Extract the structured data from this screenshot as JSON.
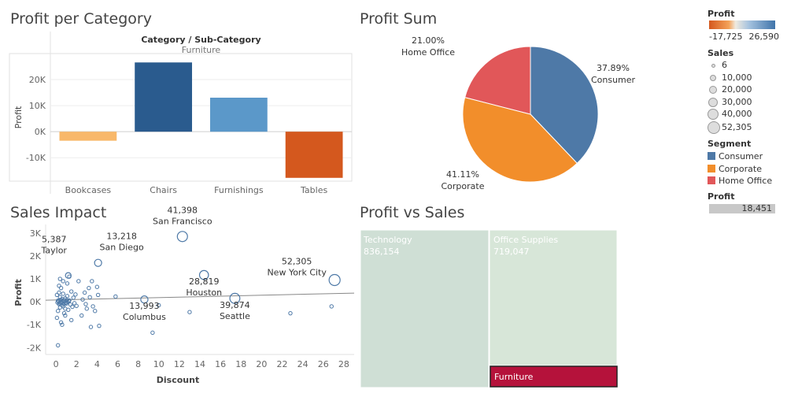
{
  "panels": {
    "profit_per_category": {
      "title": "Profit per Category",
      "header": "Category / Sub-Category",
      "subheader": "Furniture",
      "chart_data": {
        "type": "bar",
        "categories": [
          "Bookcases",
          "Chairs",
          "Furnishings",
          "Tables"
        ],
        "values": [
          -3473,
          26590,
          13059,
          -17725
        ],
        "colors": [
          "#f8b86a",
          "#2a5b8e",
          "#5b98c9",
          "#d4581e"
        ],
        "ylabel": "Profit",
        "yticks": [
          -10000,
          0,
          10000,
          20000
        ],
        "ytick_labels": [
          "-10K",
          "0K",
          "10K",
          "20K"
        ],
        "ylim": [
          -19000,
          30000
        ],
        "grid": true
      }
    },
    "profit_sum": {
      "title": "Profit Sum",
      "chart_data": {
        "type": "pie",
        "slices": [
          {
            "label": "Consumer",
            "pct": 37.89,
            "pct_label": "37.89%",
            "color": "#4e79a7"
          },
          {
            "label": "Corporate",
            "pct": 41.11,
            "pct_label": "41.11%",
            "color": "#f28e2b"
          },
          {
            "label": "Home Office",
            "pct": 21.0,
            "pct_label": "21.00%",
            "color": "#e15759"
          }
        ]
      }
    },
    "sales_impact": {
      "title": "Sales Impact",
      "chart_data": {
        "type": "scatter",
        "xlabel": "Discount",
        "ylabel": "Profit",
        "xlim": [
          -1,
          29
        ],
        "ylim": [
          -2300,
          3100
        ],
        "xticks": [
          0,
          2,
          4,
          6,
          8,
          10,
          12,
          14,
          16,
          18,
          20,
          22,
          24,
          26,
          28
        ],
        "yticks": [
          -2000,
          -1000,
          0,
          1000,
          2000,
          3000
        ],
        "ytick_labels": [
          "-2K",
          "-1K",
          "0K",
          "1K",
          "2K",
          "3K"
        ],
        "trend": {
          "x": [
            -1,
            29
          ],
          "y": [
            70,
            380
          ]
        },
        "labeled_points": [
          {
            "name": "Taylor",
            "value": "5,387",
            "x": 1.2,
            "y": 1150,
            "s": 5387
          },
          {
            "name": "San Diego",
            "value": "13,218",
            "x": 4.1,
            "y": 1700,
            "s": 13218
          },
          {
            "name": "San Francisco",
            "value": "41,398",
            "x": 12.3,
            "y": 2850,
            "s": 41398
          },
          {
            "name": "Houston",
            "value": "28,819",
            "x": 14.4,
            "y": 1170,
            "s": 28819
          },
          {
            "name": "New York City",
            "value": "52,305",
            "x": 27.1,
            "y": 950,
            "s": 52305
          },
          {
            "name": "Columbus",
            "value": "13,993",
            "x": 8.6,
            "y": 100,
            "s": 13993
          },
          {
            "name": "Seattle",
            "value": "39,874",
            "x": 17.4,
            "y": 150,
            "s": 39874
          }
        ],
        "other_points": [
          [
            0.2,
            50
          ],
          [
            0.3,
            -100
          ],
          [
            0.4,
            200
          ],
          [
            0.5,
            -50
          ],
          [
            0.6,
            120
          ],
          [
            0.7,
            -200
          ],
          [
            0.8,
            80
          ],
          [
            0.9,
            -300
          ],
          [
            0.1,
            300
          ],
          [
            0.2,
            -400
          ],
          [
            0.3,
            400
          ],
          [
            0.4,
            -250
          ],
          [
            0.5,
            600
          ],
          [
            0.6,
            -150
          ],
          [
            0.7,
            350
          ],
          [
            0.8,
            -500
          ],
          [
            0.9,
            150
          ],
          [
            1.0,
            -80
          ],
          [
            1.1,
            250
          ],
          [
            1.2,
            -350
          ],
          [
            1.3,
            60
          ],
          [
            1.4,
            -120
          ],
          [
            1.5,
            450
          ],
          [
            1.6,
            -220
          ],
          [
            1.7,
            180
          ],
          [
            1.8,
            -60
          ],
          [
            1.9,
            320
          ],
          [
            2.0,
            -180
          ],
          [
            0.15,
            -30
          ],
          [
            0.25,
            20
          ],
          [
            0.35,
            -60
          ],
          [
            0.45,
            90
          ],
          [
            0.55,
            -20
          ],
          [
            0.65,
            40
          ],
          [
            0.75,
            -90
          ],
          [
            0.85,
            10
          ],
          [
            0.95,
            -40
          ],
          [
            1.05,
            70
          ],
          [
            1.15,
            -10
          ],
          [
            1.25,
            30
          ],
          [
            0.1,
            -700
          ],
          [
            0.3,
            700
          ],
          [
            0.5,
            -900
          ],
          [
            0.7,
            900
          ],
          [
            0.9,
            -600
          ],
          [
            1.1,
            800
          ],
          [
            0.4,
            1000
          ],
          [
            0.6,
            -1000
          ],
          [
            1.3,
            1100
          ],
          [
            1.5,
            -800
          ],
          [
            2.2,
            900
          ],
          [
            2.5,
            -600
          ],
          [
            2.8,
            400
          ],
          [
            3.0,
            -300
          ],
          [
            3.2,
            600
          ],
          [
            3.5,
            900
          ],
          [
            3.8,
            -400
          ],
          [
            4.0,
            650
          ],
          [
            4.2,
            -1050
          ],
          [
            4.1,
            300
          ],
          [
            2.6,
            100
          ],
          [
            2.9,
            -100
          ],
          [
            3.3,
            200
          ],
          [
            3.6,
            -200
          ],
          [
            0.2,
            -1900
          ],
          [
            3.4,
            -1100
          ],
          [
            5.8,
            230
          ],
          [
            9.4,
            -1350
          ],
          [
            10.0,
            -150
          ],
          [
            13.0,
            -450
          ],
          [
            22.8,
            -500
          ],
          [
            26.8,
            -200
          ]
        ]
      }
    },
    "profit_vs_sales": {
      "title": "Profit vs Sales",
      "chart_data": {
        "type": "treemap",
        "cells": [
          {
            "name": "Technology",
            "value": "836,154",
            "color": "#cfdfd5",
            "text": "#ffffff"
          },
          {
            "name": "Office Supplies",
            "value": "719,047",
            "color": "#d7e6d8",
            "text": "#ffffff"
          },
          {
            "name": "Furniture",
            "value": "",
            "color": "#b5123b",
            "text": "#ffffff"
          }
        ]
      }
    }
  },
  "legend": {
    "profit": {
      "title": "Profit",
      "min_label": "-17,725",
      "max_label": "26,590"
    },
    "sales": {
      "title": "Sales",
      "items": [
        {
          "label": "6",
          "d": 3
        },
        {
          "label": "10,000",
          "d": 6
        },
        {
          "label": "20,000",
          "d": 8
        },
        {
          "label": "30,000",
          "d": 10
        },
        {
          "label": "40,000",
          "d": 12
        },
        {
          "label": "52,305",
          "d": 14
        }
      ]
    },
    "segment": {
      "title": "Segment",
      "items": [
        {
          "label": "Consumer",
          "color": "#4e79a7"
        },
        {
          "label": "Corporate",
          "color": "#f28e2b"
        },
        {
          "label": "Home Office",
          "color": "#e15759"
        }
      ]
    },
    "profit_filter": {
      "title": "Profit",
      "value_label": "18,451",
      "fraction": 1.0
    }
  }
}
